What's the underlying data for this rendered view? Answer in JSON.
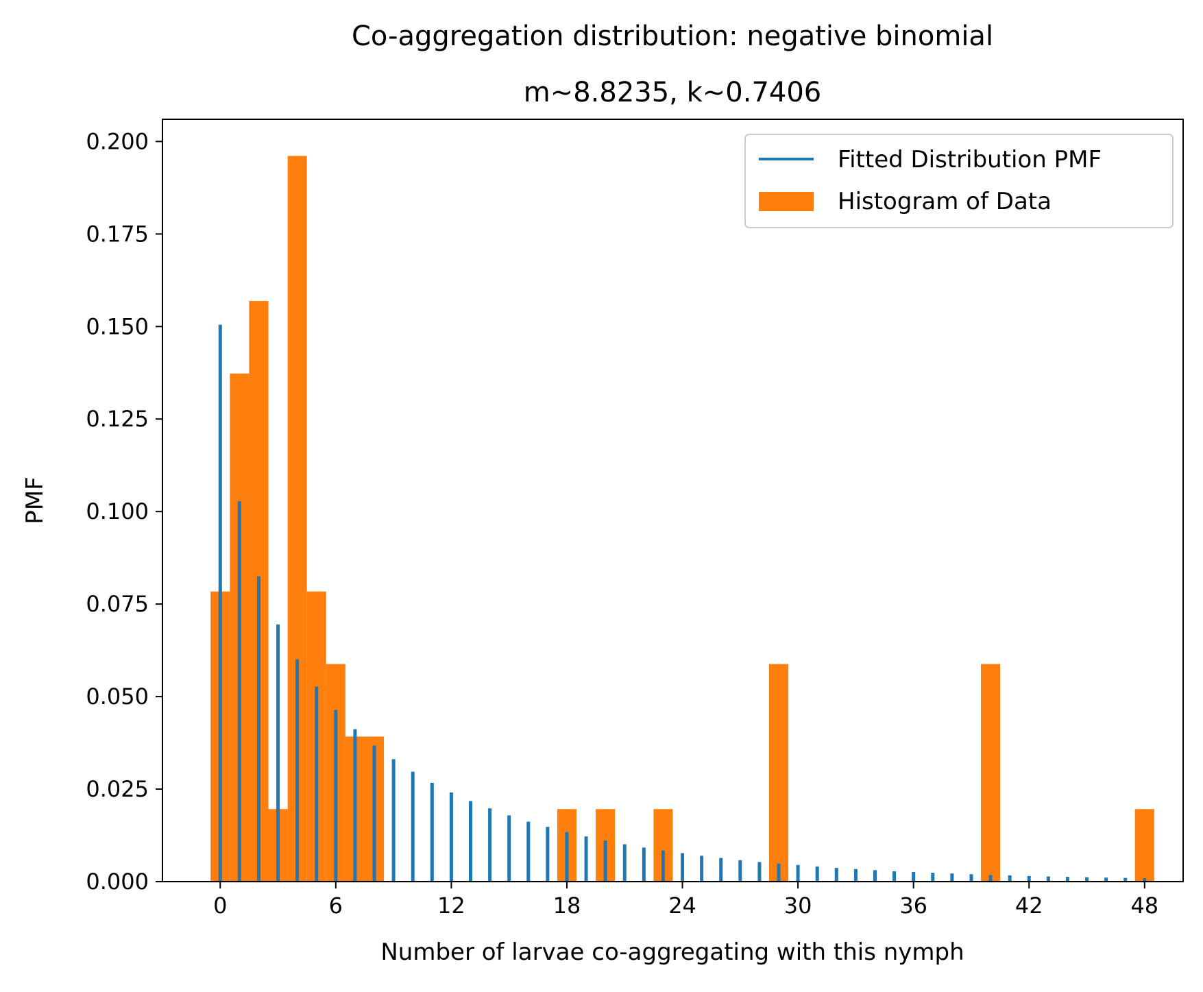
{
  "chart_data": {
    "type": "bar",
    "title": "Co-aggregation distribution: negative binomial",
    "subtitle": "m~8.8235, k~0.7406",
    "xlabel": "Number of larvae co-aggregating with this nymph",
    "ylabel": "PMF",
    "xlim": [
      -3,
      50
    ],
    "ylim": [
      0,
      0.206
    ],
    "xticks": [
      "0",
      "6",
      "12",
      "18",
      "24",
      "30",
      "36",
      "42",
      "48"
    ],
    "yticks": [
      "0.000",
      "0.025",
      "0.050",
      "0.075",
      "0.100",
      "0.125",
      "0.150",
      "0.175",
      "0.200"
    ],
    "grid": false,
    "legend_position": "upper right",
    "colors": {
      "pmf": "#1f77b4",
      "histogram": "#ff7f0e"
    },
    "series": [
      {
        "name": "Fitted Distribution PMF",
        "type": "stem",
        "x": [
          0,
          1,
          2,
          3,
          4,
          5,
          6,
          7,
          8,
          9,
          10,
          11,
          12,
          13,
          14,
          15,
          16,
          17,
          18,
          19,
          20,
          21,
          22,
          23,
          24,
          25,
          26,
          27,
          28,
          29,
          30,
          31,
          32,
          33,
          34,
          35,
          36,
          37,
          38,
          39,
          40,
          41,
          42,
          43,
          44,
          45,
          46,
          47,
          48
        ],
        "values": [
          0.1505,
          0.1028,
          0.0825,
          0.0695,
          0.0601,
          0.0527,
          0.0464,
          0.0412,
          0.0368,
          0.0331,
          0.0297,
          0.0267,
          0.0241,
          0.0218,
          0.0198,
          0.0179,
          0.0162,
          0.0148,
          0.0134,
          0.0122,
          0.0111,
          0.0101,
          0.0092,
          0.0084,
          0.0077,
          0.007,
          0.0064,
          0.0058,
          0.0053,
          0.0049,
          0.0045,
          0.0041,
          0.0037,
          0.0034,
          0.0031,
          0.0028,
          0.0026,
          0.0024,
          0.0022,
          0.002,
          0.0018,
          0.0017,
          0.0015,
          0.0014,
          0.0013,
          0.0012,
          0.0011,
          0.001,
          0.0009
        ]
      },
      {
        "name": "Histogram of Data",
        "type": "histogram",
        "bin_edges": [
          -0.5,
          0.5,
          1.5,
          2.5,
          3.5,
          4.5,
          5.5,
          6.5,
          7.5,
          8.5,
          17.5,
          18.5,
          19.5,
          20.5,
          22.5,
          23.5,
          28.5,
          29.5,
          39.5,
          40.5,
          47.5,
          48.5
        ],
        "bins": [
          {
            "x0": -0.5,
            "x1": 0.5,
            "value": 0.0784
          },
          {
            "x0": 0.5,
            "x1": 1.5,
            "value": 0.1373
          },
          {
            "x0": 1.5,
            "x1": 2.5,
            "value": 0.1569
          },
          {
            "x0": 2.5,
            "x1": 3.5,
            "value": 0.0196
          },
          {
            "x0": 3.5,
            "x1": 4.5,
            "value": 0.1961
          },
          {
            "x0": 4.5,
            "x1": 5.5,
            "value": 0.0784
          },
          {
            "x0": 5.5,
            "x1": 6.5,
            "value": 0.0588
          },
          {
            "x0": 6.5,
            "x1": 7.5,
            "value": 0.0392
          },
          {
            "x0": 7.5,
            "x1": 8.5,
            "value": 0.0392
          },
          {
            "x0": 17.5,
            "x1": 18.5,
            "value": 0.0196
          },
          {
            "x0": 19.5,
            "x1": 20.5,
            "value": 0.0196
          },
          {
            "x0": 22.5,
            "x1": 23.5,
            "value": 0.0196
          },
          {
            "x0": 28.5,
            "x1": 29.5,
            "value": 0.0588
          },
          {
            "x0": 39.5,
            "x1": 40.5,
            "value": 0.0588
          },
          {
            "x0": 47.5,
            "x1": 48.5,
            "value": 0.0196
          }
        ]
      }
    ]
  }
}
